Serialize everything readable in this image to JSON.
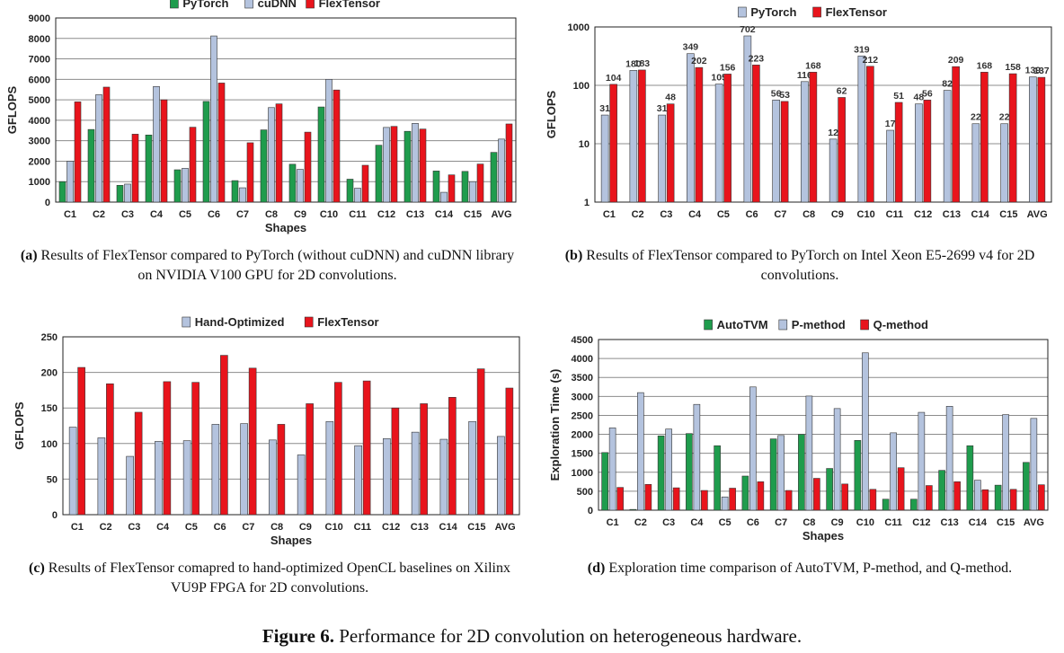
{
  "figure": {
    "label": "Figure 6.",
    "text": "Performance for 2D convolution on heterogeneous hardware."
  },
  "colors": {
    "green": "#1f9c4d",
    "blue": "#b4c3de",
    "red": "#e8141c",
    "grid": "#8c8c8c",
    "axis": "#222222"
  },
  "chart_data": [
    {
      "id": "a",
      "type": "bar",
      "categories": [
        "C1",
        "C2",
        "C3",
        "C4",
        "C5",
        "C6",
        "C7",
        "C8",
        "C9",
        "C10",
        "C11",
        "C12",
        "C13",
        "C14",
        "C15",
        "AVG"
      ],
      "series": [
        {
          "name": "PyTorch",
          "color": "#1f9c4d",
          "values": [
            1000,
            3550,
            820,
            3280,
            1580,
            4920,
            1050,
            3530,
            1850,
            4650,
            1120,
            2780,
            3460,
            1520,
            1500,
            2430
          ]
        },
        {
          "name": "cuDNN",
          "color": "#b4c3de",
          "values": [
            2000,
            5250,
            880,
            5650,
            1650,
            8120,
            700,
            4620,
            1600,
            6000,
            680,
            3650,
            3850,
            480,
            1000,
            3080
          ]
        },
        {
          "name": "FlexTensor",
          "color": "#e8141c",
          "values": [
            4900,
            5620,
            3320,
            5000,
            3660,
            5820,
            2900,
            4800,
            3420,
            5480,
            1800,
            3700,
            3570,
            1330,
            1860,
            3820
          ]
        }
      ],
      "xlabel": "Shapes",
      "ylabel": "GFLOPS",
      "ylim": [
        0,
        9000
      ],
      "yticks": [
        0,
        1000,
        2000,
        3000,
        4000,
        5000,
        6000,
        7000,
        8000,
        9000
      ],
      "scale": "linear",
      "grid": true,
      "legend": "top",
      "caption_label": "(a)",
      "caption": "Results of FlexTensor compared to PyTorch (without cuDNN) and cuDNN library on NVIDIA V100 GPU for 2D convolutions."
    },
    {
      "id": "b",
      "type": "bar",
      "categories": [
        "C1",
        "C2",
        "C3",
        "C4",
        "C5",
        "C6",
        "C7",
        "C8",
        "C9",
        "C10",
        "C11",
        "C12",
        "C13",
        "C14",
        "C15",
        "AVG"
      ],
      "series": [
        {
          "name": "PyTorch",
          "color": "#b4c3de",
          "values": [
            31,
            180,
            31,
            349,
            105,
            702,
            56,
            116,
            12,
            319,
            17,
            48,
            82,
            22,
            22,
            139
          ],
          "labels": [
            "31",
            "180",
            "31",
            "349",
            "105",
            "702",
            "56",
            "116",
            "12",
            "319",
            "17",
            "48",
            "82",
            "22",
            "22",
            "139"
          ]
        },
        {
          "name": "FlexTensor",
          "color": "#e8141c",
          "values": [
            104,
            183,
            48,
            202,
            156,
            223,
            53,
            168,
            62,
            212,
            51,
            56,
            209,
            168,
            158,
            137
          ],
          "labels": [
            "104",
            "183",
            "48",
            "202",
            "156",
            "223",
            "53",
            "168",
            "62",
            "212",
            "51",
            "56",
            "209",
            "168",
            "158",
            "137"
          ]
        }
      ],
      "xlabel": "",
      "ylabel": "GFLOPS",
      "ylim": [
        1,
        1000
      ],
      "yticks": [
        1,
        10,
        100,
        1000
      ],
      "scale": "log",
      "grid": true,
      "legend": "top",
      "caption_label": "(b)",
      "caption": "Results of FlexTensor compared to PyTorch on Intel Xeon E5-2699 v4 for 2D convolutions."
    },
    {
      "id": "c",
      "type": "bar",
      "categories": [
        "C1",
        "C2",
        "C3",
        "C4",
        "C5",
        "C6",
        "C7",
        "C8",
        "C9",
        "C10",
        "C11",
        "C12",
        "C13",
        "C14",
        "C15",
        "AVG"
      ],
      "series": [
        {
          "name": "Hand-Optimized",
          "color": "#b4c3de",
          "values": [
            123,
            108,
            82,
            103,
            104,
            127,
            128,
            105,
            84,
            131,
            97,
            107,
            116,
            106,
            131,
            110
          ]
        },
        {
          "name": "FlexTensor",
          "color": "#e8141c",
          "values": [
            207,
            184,
            144,
            187,
            186,
            224,
            206,
            127,
            156,
            186,
            188,
            150,
            156,
            165,
            205,
            178
          ]
        }
      ],
      "xlabel": "Shapes",
      "ylabel": "GFLOPS",
      "ylim": [
        0,
        250
      ],
      "yticks": [
        0,
        50,
        100,
        150,
        200,
        250
      ],
      "scale": "linear",
      "grid": true,
      "legend": "top",
      "caption_label": "(c)",
      "caption": "Results of FlexTensor comapred to hand-optimized OpenCL baselines on Xilinx VU9P FPGA for 2D convolutions."
    },
    {
      "id": "d",
      "type": "bar",
      "categories": [
        "C1",
        "C2",
        "C3",
        "C4",
        "C5",
        "C6",
        "C7",
        "C8",
        "C9",
        "C10",
        "C11",
        "C12",
        "C13",
        "C14",
        "C15",
        "AVG"
      ],
      "series": [
        {
          "name": "AutoTVM",
          "color": "#1f9c4d",
          "values": [
            1520,
            20,
            1960,
            2020,
            1700,
            900,
            1880,
            2000,
            1100,
            1840,
            290,
            290,
            1050,
            1700,
            660,
            1260
          ]
        },
        {
          "name": "P-method",
          "color": "#b4c3de",
          "values": [
            2170,
            3100,
            2140,
            2790,
            350,
            3250,
            1970,
            3010,
            2680,
            4150,
            2040,
            2580,
            2740,
            790,
            2520,
            2420
          ]
        },
        {
          "name": "Q-method",
          "color": "#e8141c",
          "values": [
            600,
            680,
            590,
            520,
            580,
            750,
            520,
            840,
            690,
            550,
            1120,
            650,
            750,
            540,
            550,
            670
          ]
        }
      ],
      "xlabel": "Shapes",
      "ylabel": "Exploration Time (s)",
      "ylim": [
        0,
        4500
      ],
      "yticks": [
        0,
        500,
        1000,
        1500,
        2000,
        2500,
        3000,
        3500,
        4000,
        4500
      ],
      "scale": "linear",
      "grid": true,
      "legend": "top",
      "caption_label": "(d)",
      "caption": "Exploration time comparison of AutoTVM, P-method, and Q-method."
    }
  ]
}
